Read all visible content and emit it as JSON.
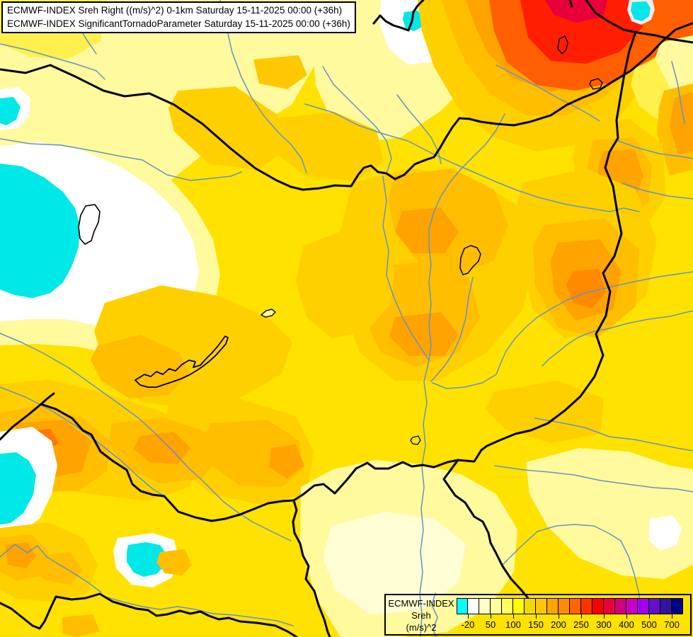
{
  "title_box": {
    "line1": "ECMWF-INDEX Sreh Right ((m/s)^2) 0-1km Saturday 15-11-2025 00:00 (+36h)",
    "line2": "ECMWF-INDEX SignificantTornadoParameter Saturday 15-11-2025 00:00 (+36h)"
  },
  "legend": {
    "product": "ECMWF-INDEX",
    "parameter": "Sreh",
    "units": "(m/s)^2",
    "tick_labels": [
      "-20",
      "50",
      "100",
      "150",
      "200",
      "250",
      "300",
      "400",
      "500",
      "700"
    ],
    "swatch_colors": [
      "#00FFFF",
      "#FFFFFF",
      "#FFFFC8",
      "#FFFFA0",
      "#FFFF64",
      "#FFFF00",
      "#F5D800",
      "#FFC800",
      "#FFA500",
      "#FF8C00",
      "#FF6400",
      "#FF3200",
      "#FF0000",
      "#E8003C",
      "#D20080",
      "#C800C8",
      "#A000F0",
      "#6410C8",
      "#3214A0",
      "#000082"
    ]
  },
  "map": {
    "water_color": "#00E8E8",
    "river_color": "#6493C8",
    "border_color": "#000000",
    "base_fill": "#FFE200"
  }
}
